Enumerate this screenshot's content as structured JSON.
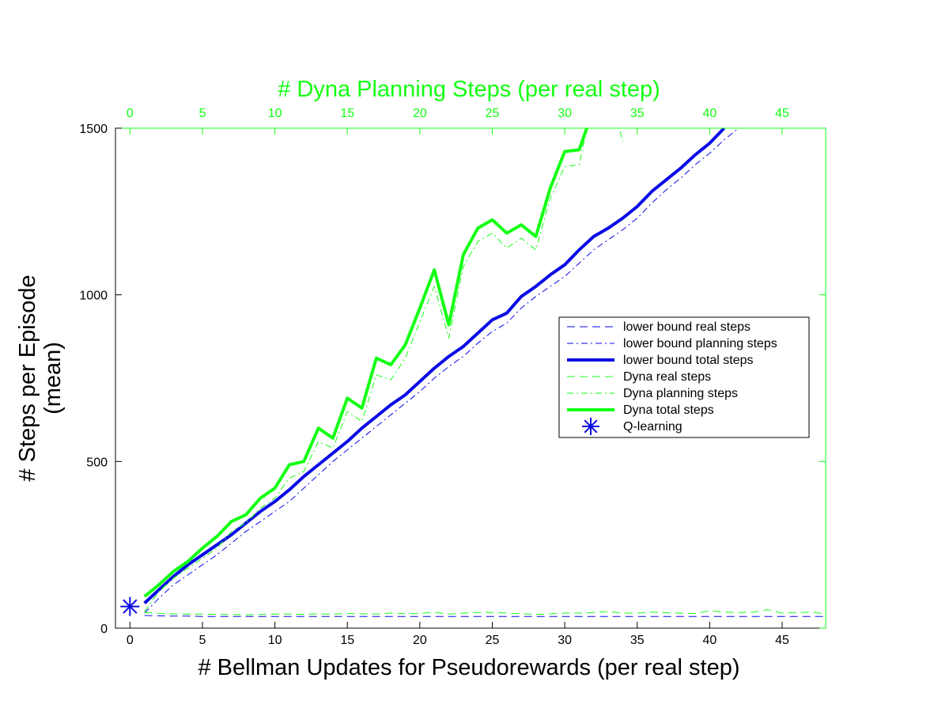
{
  "chart_data": {
    "type": "line",
    "title": "",
    "xlabel": "# Bellman Updates for Pseudorewards (per real step)",
    "ylabel": "# Steps per Episode",
    "ylabel2": "(mean)",
    "x2label": "# Dyna Planning Steps (per real step)",
    "xlim": [
      -1,
      48
    ],
    "ylim": [
      0,
      1500
    ],
    "xticks": [
      0,
      5,
      10,
      15,
      20,
      25,
      30,
      35,
      40,
      45
    ],
    "x2ticks": [
      0,
      5,
      10,
      15,
      20,
      25,
      30,
      35,
      40,
      45
    ],
    "yticks": [
      0,
      500,
      1000,
      1500
    ],
    "grid": false,
    "legend_position": "right",
    "colors": {
      "blue": "#0a0ae6",
      "green": "#14ff14"
    },
    "series": [
      {
        "name": "lower bound real steps",
        "axis": "bottom",
        "color": "blue",
        "style": "dashed",
        "width": 1,
        "x": [
          1,
          2,
          3,
          4,
          5,
          6,
          7,
          8,
          9,
          10,
          11,
          12,
          13,
          14,
          15,
          16,
          17,
          18,
          19,
          20,
          21,
          22,
          23,
          24,
          25,
          26,
          27,
          28,
          29,
          30,
          31,
          32,
          33,
          34,
          35,
          36,
          37,
          38,
          39,
          40,
          41,
          42,
          43,
          44,
          45,
          46,
          47,
          48
        ],
        "y": [
          38,
          37,
          36,
          36,
          35,
          35,
          35,
          35,
          35,
          35,
          35,
          35,
          35,
          35,
          35,
          35,
          35,
          35,
          35,
          35,
          35,
          35,
          35,
          35,
          35,
          35,
          35,
          35,
          35,
          35,
          35,
          35,
          35,
          35,
          35,
          35,
          35,
          35,
          35,
          35,
          35,
          35,
          35,
          35,
          35,
          35,
          35,
          35
        ]
      },
      {
        "name": "lower bound planning steps",
        "axis": "bottom",
        "color": "blue",
        "style": "dashdot",
        "width": 1,
        "x": [
          1,
          2,
          3,
          4,
          5,
          6,
          7,
          8,
          9,
          10,
          11,
          12,
          13,
          14,
          15,
          16,
          17,
          18,
          19,
          20,
          21,
          22,
          23,
          24,
          25,
          26,
          27,
          28,
          29,
          30,
          31,
          32,
          33,
          34,
          35,
          36,
          37,
          38,
          39,
          40,
          41,
          42
        ],
        "y": [
          45,
          90,
          130,
          160,
          190,
          220,
          255,
          290,
          320,
          350,
          380,
          420,
          460,
          500,
          535,
          570,
          605,
          640,
          675,
          710,
          750,
          785,
          815,
          855,
          890,
          915,
          960,
          995,
          1025,
          1055,
          1095,
          1135,
          1165,
          1195,
          1230,
          1275,
          1315,
          1350,
          1390,
          1425,
          1465,
          1500
        ]
      },
      {
        "name": "lower bound total steps",
        "axis": "bottom",
        "color": "blue",
        "style": "solid",
        "width": 4,
        "x": [
          1,
          2,
          3,
          4,
          5,
          6,
          7,
          8,
          9,
          10,
          11,
          12,
          13,
          14,
          15,
          16,
          17,
          18,
          19,
          20,
          21,
          22,
          23,
          24,
          25,
          26,
          27,
          28,
          29,
          30,
          31,
          32,
          33,
          34,
          35,
          36,
          37,
          38,
          39,
          40,
          41
        ],
        "y": [
          75,
          115,
          155,
          190,
          220,
          250,
          280,
          315,
          350,
          380,
          415,
          455,
          490,
          525,
          560,
          600,
          635,
          670,
          700,
          740,
          780,
          815,
          845,
          885,
          925,
          945,
          995,
          1025,
          1060,
          1090,
          1135,
          1175,
          1200,
          1230,
          1265,
          1310,
          1345,
          1380,
          1420,
          1455,
          1500
        ]
      },
      {
        "name": "Dyna real steps",
        "axis": "top",
        "color": "green",
        "style": "dashed",
        "width": 1,
        "x": [
          1,
          2,
          3,
          4,
          5,
          6,
          7,
          8,
          9,
          10,
          11,
          12,
          13,
          14,
          15,
          16,
          17,
          18,
          19,
          20,
          21,
          22,
          23,
          24,
          25,
          26,
          27,
          28,
          29,
          30,
          31,
          32,
          33,
          34,
          35,
          36,
          37,
          38,
          39,
          40,
          41,
          42,
          43,
          44,
          45,
          46,
          47,
          48
        ],
        "y": [
          47,
          44,
          43,
          42,
          42,
          41,
          41,
          40,
          41,
          42,
          42,
          41,
          43,
          42,
          44,
          43,
          42,
          45,
          43,
          44,
          48,
          42,
          45,
          47,
          47,
          45,
          43,
          41,
          43,
          45,
          45,
          47,
          50,
          45,
          45,
          48,
          46,
          45,
          44,
          52,
          48,
          47,
          48,
          55,
          45,
          47,
          48,
          43
        ]
      },
      {
        "name": "Dyna planning steps",
        "axis": "top",
        "color": "green",
        "style": "dashdot",
        "width": 1,
        "x": [
          1,
          2,
          3,
          4,
          5,
          6,
          7,
          8,
          9,
          10,
          11,
          12,
          13,
          14,
          15,
          16,
          17,
          18,
          19,
          20,
          21,
          22,
          23,
          24,
          25,
          26,
          27,
          28,
          29,
          30,
          31,
          32,
          33,
          34
        ],
        "y": [
          50,
          110,
          150,
          180,
          210,
          240,
          290,
          315,
          360,
          390,
          450,
          470,
          560,
          540,
          650,
          620,
          760,
          745,
          810,
          920,
          1025,
          870,
          1085,
          1160,
          1185,
          1140,
          1170,
          1135,
          1290,
          1385,
          1390,
          1600,
          1620,
          1460
        ]
      },
      {
        "name": "Dyna total steps",
        "axis": "top",
        "color": "green",
        "style": "solid",
        "width": 4,
        "x": [
          1,
          2,
          3,
          4,
          5,
          6,
          7,
          8,
          9,
          10,
          11,
          12,
          13,
          14,
          15,
          16,
          17,
          18,
          19,
          20,
          21,
          22,
          23,
          24,
          25,
          26,
          27,
          28,
          29,
          30,
          31,
          32
        ],
        "y": [
          95,
          130,
          170,
          200,
          240,
          275,
          320,
          340,
          390,
          420,
          490,
          500,
          600,
          570,
          690,
          660,
          810,
          790,
          850,
          960,
          1075,
          910,
          1120,
          1200,
          1225,
          1185,
          1210,
          1175,
          1320,
          1430,
          1435,
          1560
        ]
      },
      {
        "name": "Q-learning",
        "axis": "bottom",
        "color": "blue",
        "style": "marker",
        "marker": "asterisk",
        "x": [
          0
        ],
        "y": [
          65
        ]
      }
    ]
  }
}
